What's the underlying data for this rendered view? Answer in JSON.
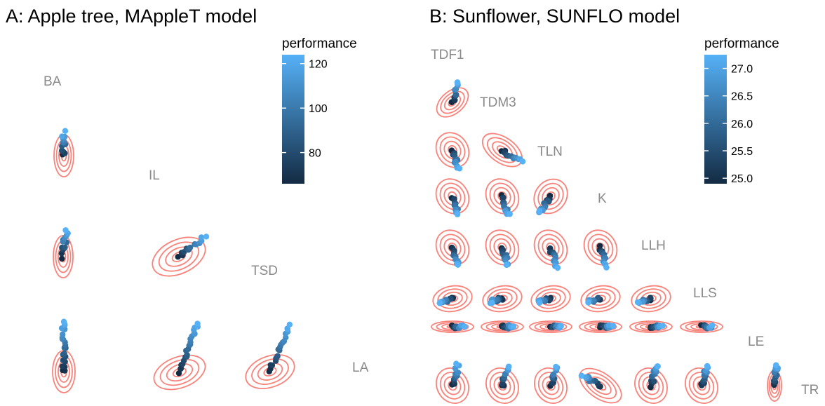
{
  "colors": {
    "low": "#132B43",
    "high": "#56B1F7",
    "ellipse": "#F8766D",
    "label": "#8a8a8a"
  },
  "chart_data": [
    {
      "type": "scatter-matrix",
      "title": "A: Apple tree, MAppleT model",
      "variables": [
        "BA",
        "IL",
        "TSD",
        "LA"
      ],
      "legend": {
        "title": "performance",
        "ticks": [
          120,
          100,
          80
        ],
        "range": [
          66,
          124
        ],
        "position": "top-right"
      },
      "contours": 4
    },
    {
      "type": "scatter-matrix",
      "title": "B: Sunflower, SUNFLO model",
      "variables": [
        "TDF1",
        "TDM3",
        "TLN",
        "K",
        "LLH",
        "LLS",
        "LE",
        "TR"
      ],
      "legend": {
        "title": "performance",
        "ticks": [
          "27.0",
          "26.5",
          "26.0",
          "25.5",
          "25.0"
        ],
        "range": [
          24.9,
          27.25
        ],
        "position": "top-right"
      },
      "contours": 4
    }
  ]
}
